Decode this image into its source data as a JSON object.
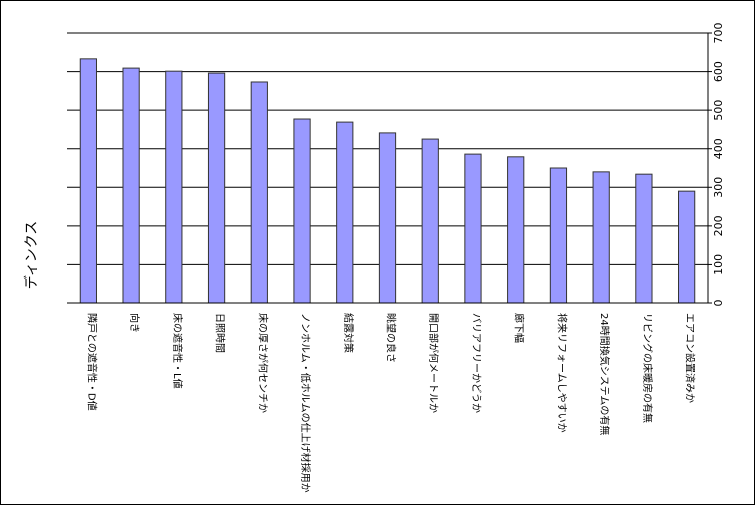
{
  "chart_data": {
    "type": "bar",
    "y_label": "ディンクス",
    "categories": [
      "隣戸との遮音性・D値",
      "向き",
      "床の遮音性・L値",
      "日照時間",
      "床の厚さが何センチか",
      "ノンホルム・低ホルムの仕上げ材採用か",
      "結露対策",
      "眺望の良さ",
      "開口部が何メートルか",
      "バリアフリーかどうか",
      "廊下幅",
      "将来リフォームしやすいか",
      "24時間換気システムの有無",
      "リビングの床暖房の有無",
      "エアコン設置済みか"
    ],
    "values": [
      633,
      609,
      601,
      596,
      573,
      477,
      469,
      441,
      425,
      386,
      379,
      350,
      340,
      334,
      290
    ],
    "color": "#9999ff",
    "ylim": [
      0,
      700
    ],
    "yticks": [
      0,
      100,
      200,
      300,
      400,
      500,
      600,
      700
    ],
    "grid": true,
    "y_axis_side": "right"
  }
}
